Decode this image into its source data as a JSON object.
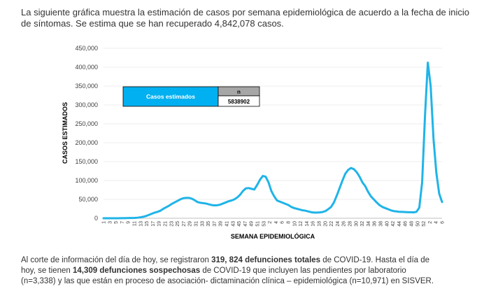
{
  "intro": {
    "line1": "La siguiente gráfica muestra la estimación de casos por semana epidemiológica de acuerdo a la fecha de inicio",
    "line2": "de síntomas. Se estima que se han recuperado 4,842,078 casos."
  },
  "legend_table": {
    "label": "Casos estimados",
    "n_header": "n",
    "n_value": "5838902",
    "label_color": "#00b0f0",
    "header_color": "#a6a6a6"
  },
  "chart_data": {
    "type": "line",
    "ylabel": "CASOS ESTIMADOS",
    "xlabel": "SEMANA EPIDEMIOLÓGICA",
    "ylim": [
      0,
      450000
    ],
    "yticks": [
      {
        "value": 0,
        "label": "0"
      },
      {
        "value": 50000,
        "label": "50,000"
      },
      {
        "value": 100000,
        "label": "100,000"
      },
      {
        "value": 150000,
        "label": "150,000"
      },
      {
        "value": 200000,
        "label": "200,000"
      },
      {
        "value": 250000,
        "label": "250,000"
      },
      {
        "value": 300000,
        "label": "300,000"
      },
      {
        "value": 350000,
        "label": "350,000"
      },
      {
        "value": 400000,
        "label": "400,000"
      },
      {
        "value": 450000,
        "label": "450,000"
      }
    ],
    "line_color": "#1fb4e8",
    "week_labels": [
      "1",
      "3",
      "5",
      "7",
      "9",
      "11",
      "13",
      "15",
      "17",
      "19",
      "21",
      "23",
      "25",
      "27",
      "29",
      "31",
      "33",
      "35",
      "37",
      "39",
      "41",
      "43",
      "45",
      "47",
      "49",
      "51",
      "53",
      "2",
      "4",
      "6",
      "8",
      "10",
      "12",
      "14",
      "16",
      "18",
      "20",
      "22",
      "24",
      "26",
      "28",
      "30",
      "32",
      "34",
      "36",
      "38",
      "40",
      "42",
      "44",
      "46",
      "48",
      "50",
      "52",
      "2",
      "4",
      "6"
    ],
    "values": [
      100,
      100,
      100,
      100,
      100,
      100,
      200,
      300,
      400,
      600,
      800,
      1000,
      1500,
      2500,
      4000,
      6000,
      9000,
      12000,
      15000,
      17000,
      20000,
      25000,
      29000,
      33000,
      38000,
      42000,
      46000,
      50000,
      53000,
      54000,
      54000,
      52000,
      48000,
      43000,
      41000,
      40000,
      39000,
      37000,
      35000,
      34000,
      34500,
      36000,
      39000,
      42000,
      45000,
      47000,
      50000,
      55000,
      62000,
      72000,
      79000,
      80000,
      78000,
      76000,
      88000,
      102000,
      112000,
      110000,
      95000,
      72000,
      58000,
      47000,
      44000,
      41000,
      38000,
      35000,
      30000,
      27000,
      25000,
      23000,
      21000,
      20000,
      18000,
      16000,
      15000,
      15000,
      15500,
      16500,
      19000,
      24000,
      30000,
      42000,
      60000,
      80000,
      100000,
      118000,
      128000,
      133000,
      130000,
      122000,
      110000,
      95000,
      85000,
      70000,
      58000,
      50000,
      42000,
      35000,
      30000,
      27000,
      24000,
      21000,
      19000,
      18000,
      17000,
      17000,
      16500,
      16000,
      16000,
      15500,
      17000,
      28000,
      95000,
      270000,
      412000,
      350000,
      210000,
      120000,
      65000,
      43000
    ]
  },
  "footer": {
    "l1a": "Al corte de información del día de hoy, se registraron ",
    "l1b": "319, 824 defunciones totales",
    "l1c": " de COVID-19. Hasta el día de",
    "l2a": "hoy, se tienen ",
    "l2b": "14,309 defunciones sospechosas",
    "l2c": " de COVID-19 que incluyen las pendientes por laboratorio",
    "l3": "(n=3,338) y las que están en proceso de asociación- dictaminación clínica – epidemiológica (n=10,971) en SISVER."
  }
}
